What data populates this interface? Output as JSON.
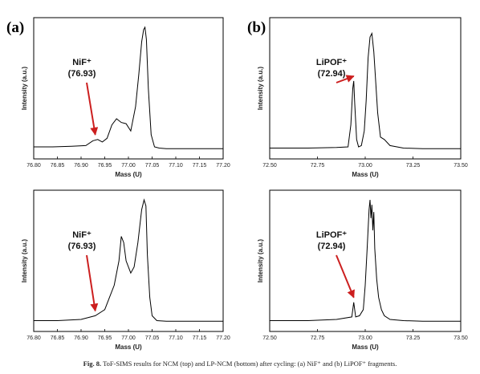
{
  "panel_labels": [
    "(a)",
    "(b)"
  ],
  "caption": {
    "label": "Fig. 8.",
    "text": "ToF-SIMS results for NCM (top) and LP-NCM (bottom) after cycling: (a) NiF⁺ and (b) LiPOF⁺ fragments."
  },
  "colors": {
    "line": "#000000",
    "arrow": "#cc1f1f",
    "text": "#111111"
  },
  "chart_data": [
    {
      "type": "line",
      "title": "",
      "xlabel": "Mass (U)",
      "ylabel": "Intensity (a.u.)",
      "xlim": [
        76.8,
        77.2
      ],
      "ylim": [
        0,
        1
      ],
      "xticks": [
        "76.80",
        "76.85",
        "76.90",
        "76.95",
        "77.00",
        "77.05",
        "77.10",
        "77.15",
        "77.20"
      ],
      "annotation": {
        "label": "NiF⁺",
        "value": "(76.93)",
        "x": 76.93
      },
      "series": [
        {
          "x": [
            76.8,
            76.84,
            76.88,
            76.91,
            76.925,
            76.935,
            76.945,
            76.955,
            76.965,
            76.975,
            76.985,
            76.995,
            77.005,
            77.015,
            77.022,
            77.028,
            77.032,
            77.035,
            77.038,
            77.042,
            77.048,
            77.055,
            77.065,
            77.08,
            77.1,
            77.15,
            77.2
          ],
          "y": [
            0.02,
            0.02,
            0.025,
            0.03,
            0.07,
            0.08,
            0.06,
            0.09,
            0.2,
            0.25,
            0.22,
            0.21,
            0.15,
            0.35,
            0.62,
            0.88,
            0.98,
            1.0,
            0.9,
            0.5,
            0.12,
            0.02,
            0.01,
            0.005,
            0.005,
            0.005,
            0.005
          ]
        }
      ]
    },
    {
      "type": "line",
      "title": "",
      "xlabel": "Mass (U)",
      "ylabel": "Intensity (a.u.)",
      "xlim": [
        72.5,
        73.5
      ],
      "ylim": [
        0,
        1
      ],
      "xticks": [
        "72.50",
        "72.75",
        "73.00",
        "73.25",
        "73.50"
      ],
      "annotation": {
        "label": "LiPOF⁺",
        "value": "(72.94)",
        "x": 72.94
      },
      "series": [
        {
          "x": [
            72.5,
            72.7,
            72.85,
            72.91,
            72.925,
            72.935,
            72.94,
            72.945,
            72.955,
            72.965,
            72.98,
            72.995,
            73.005,
            73.015,
            73.025,
            73.035,
            73.045,
            73.055,
            73.065,
            73.08,
            73.1,
            73.13,
            73.2,
            73.3,
            73.5
          ],
          "y": [
            0.01,
            0.01,
            0.015,
            0.02,
            0.2,
            0.5,
            0.56,
            0.38,
            0.08,
            0.02,
            0.03,
            0.15,
            0.4,
            0.75,
            0.92,
            0.95,
            0.8,
            0.55,
            0.3,
            0.1,
            0.08,
            0.03,
            0.01,
            0.005,
            0.005
          ]
        }
      ]
    },
    {
      "type": "line",
      "title": "",
      "xlabel": "Mass (U)",
      "ylabel": "Intensity (a.u.)",
      "xlim": [
        76.8,
        77.2
      ],
      "ylim": [
        0,
        1
      ],
      "xticks": [
        "76.80",
        "76.85",
        "76.90",
        "76.95",
        "77.00",
        "77.05",
        "77.10",
        "77.15",
        "77.20"
      ],
      "annotation": {
        "label": "NiF⁺",
        "value": "(76.93)",
        "x": 76.93
      },
      "series": [
        {
          "x": [
            76.8,
            76.85,
            76.9,
            76.93,
            76.95,
            76.96,
            76.97,
            76.98,
            76.985,
            76.99,
            76.995,
            77.005,
            77.012,
            77.02,
            77.028,
            77.033,
            77.037,
            77.04,
            77.045,
            77.05,
            77.06,
            77.08,
            77.12,
            77.2
          ],
          "y": [
            0.01,
            0.01,
            0.02,
            0.05,
            0.1,
            0.2,
            0.3,
            0.5,
            0.7,
            0.65,
            0.5,
            0.4,
            0.45,
            0.65,
            0.92,
            1.0,
            0.95,
            0.55,
            0.2,
            0.05,
            0.01,
            0.005,
            0.005,
            0.005
          ]
        }
      ]
    },
    {
      "type": "line",
      "title": "",
      "xlabel": "Mass (U)",
      "ylabel": "Intensity (a.u.)",
      "xlim": [
        72.5,
        73.5
      ],
      "ylim": [
        0,
        1
      ],
      "xticks": [
        "72.50",
        "72.75",
        "73.00",
        "73.25",
        "73.50"
      ],
      "annotation": {
        "label": "LiPOF⁺",
        "value": "(72.94)",
        "x": 72.94
      },
      "series": [
        {
          "x": [
            72.5,
            72.7,
            72.85,
            72.93,
            72.94,
            72.95,
            72.97,
            72.99,
            73.0,
            73.01,
            73.02,
            73.025,
            73.03,
            73.035,
            73.04,
            73.045,
            73.05,
            73.06,
            73.07,
            73.085,
            73.1,
            73.13,
            73.2,
            73.3,
            73.5
          ],
          "y": [
            0.01,
            0.01,
            0.02,
            0.04,
            0.16,
            0.04,
            0.05,
            0.1,
            0.3,
            0.6,
            0.92,
            1.0,
            0.85,
            0.96,
            0.75,
            0.9,
            0.6,
            0.35,
            0.2,
            0.1,
            0.05,
            0.02,
            0.01,
            0.005,
            0.005
          ]
        }
      ]
    }
  ]
}
